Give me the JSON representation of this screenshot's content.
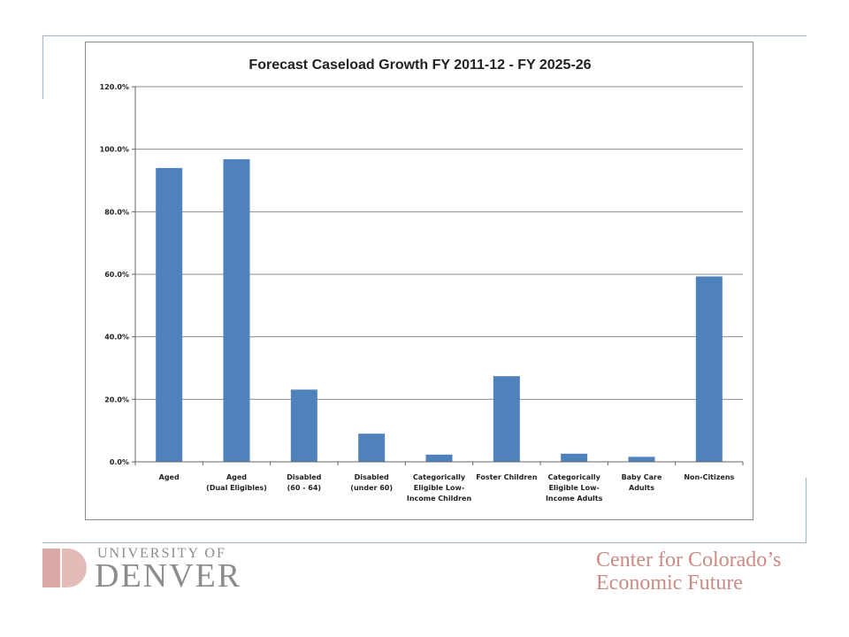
{
  "chart_data": {
    "type": "bar",
    "title": "Forecast Caseload Growth FY 2011-12 - FY 2025-26",
    "xlabel": "",
    "ylabel": "",
    "ylim": [
      0,
      120
    ],
    "y_ticks": [
      "0.0%",
      "20.0%",
      "40.0%",
      "60.0%",
      "80.0%",
      "100.0%",
      "120.0%"
    ],
    "grid": true,
    "legend": "none",
    "bar_color": "#4f81bd",
    "categories": [
      [
        "Aged"
      ],
      [
        "Aged",
        "(Dual Eligibles)"
      ],
      [
        "Disabled",
        "(60 - 64)"
      ],
      [
        "Disabled",
        "(under 60)"
      ],
      [
        "Categorically",
        "Eligible Low-",
        "Income Children"
      ],
      [
        "Foster Children"
      ],
      [
        "Categorically",
        "Eligible Low-",
        "Income Adults"
      ],
      [
        "Baby Care",
        "Adults"
      ],
      [
        "Non-Citizens"
      ]
    ],
    "values": [
      94.0,
      96.8,
      23.1,
      9.0,
      2.3,
      27.4,
      2.6,
      1.6,
      59.3
    ]
  },
  "footer": {
    "university_top": "UNIVERSITY OF",
    "university_bottom": "DENVER",
    "center_line1": "Center for Colorado’s",
    "center_line2": "Economic Future"
  },
  "colors": {
    "frame_accent": "#9fb3cc",
    "logo_mark": "#d9a9a6",
    "university_text": "#8c8c8c",
    "center_text": "#c98b86"
  }
}
